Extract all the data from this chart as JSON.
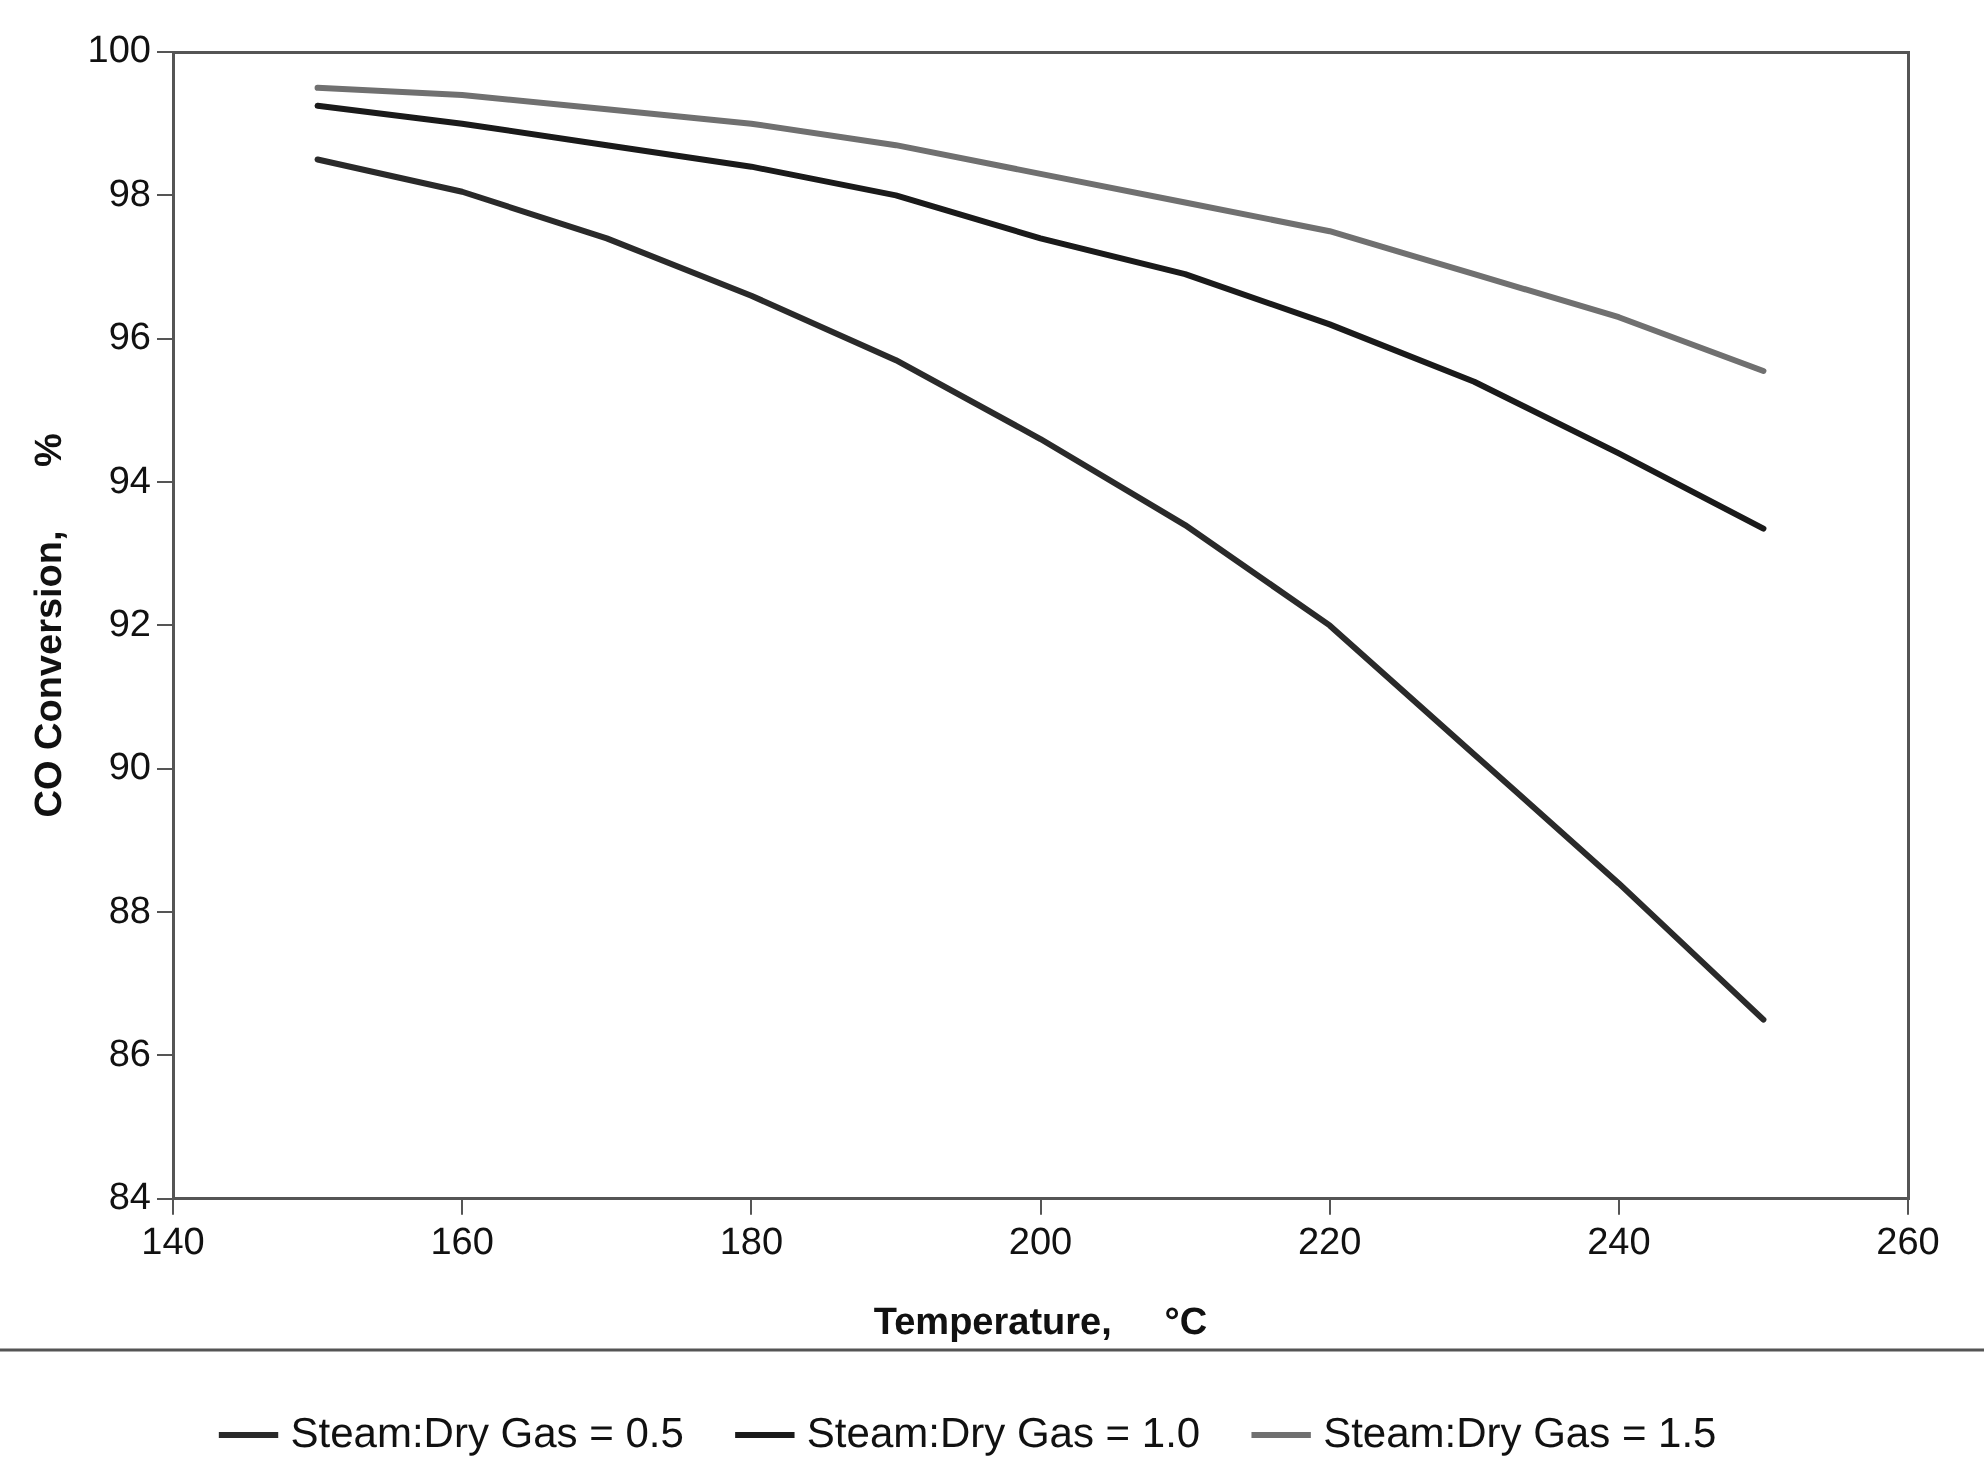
{
  "chart_data": {
    "type": "line",
    "xlabel": "Temperature,     °C",
    "ylabel": "CO Conversion,      %",
    "x": [
      150,
      160,
      170,
      180,
      190,
      200,
      210,
      220,
      230,
      240,
      250
    ],
    "series": [
      {
        "name": "Steam:Dry Gas = 0.5",
        "color": "#2a2a2a",
        "values": [
          98.5,
          98.05,
          97.4,
          96.6,
          95.7,
          94.6,
          93.4,
          92.0,
          90.2,
          88.4,
          86.5
        ]
      },
      {
        "name": "Steam:Dry Gas = 1.0",
        "color": "#1a1a1a",
        "values": [
          99.25,
          99.0,
          98.7,
          98.4,
          98.0,
          97.4,
          96.9,
          96.2,
          95.4,
          94.4,
          93.35
        ]
      },
      {
        "name": "Steam:Dry Gas = 1.5",
        "color": "#707070",
        "values": [
          99.5,
          99.4,
          99.2,
          99.0,
          98.7,
          98.3,
          97.9,
          97.5,
          96.9,
          96.3,
          95.55
        ]
      }
    ],
    "xlim": [
      140,
      260
    ],
    "xticks": [
      140,
      160,
      180,
      200,
      220,
      240,
      260
    ],
    "ylim": [
      84,
      100
    ],
    "yticks": [
      84,
      86,
      88,
      90,
      92,
      94,
      96,
      98,
      100
    ],
    "grid": false,
    "legend": "bottom",
    "marker": "none",
    "line_style": "solid"
  }
}
